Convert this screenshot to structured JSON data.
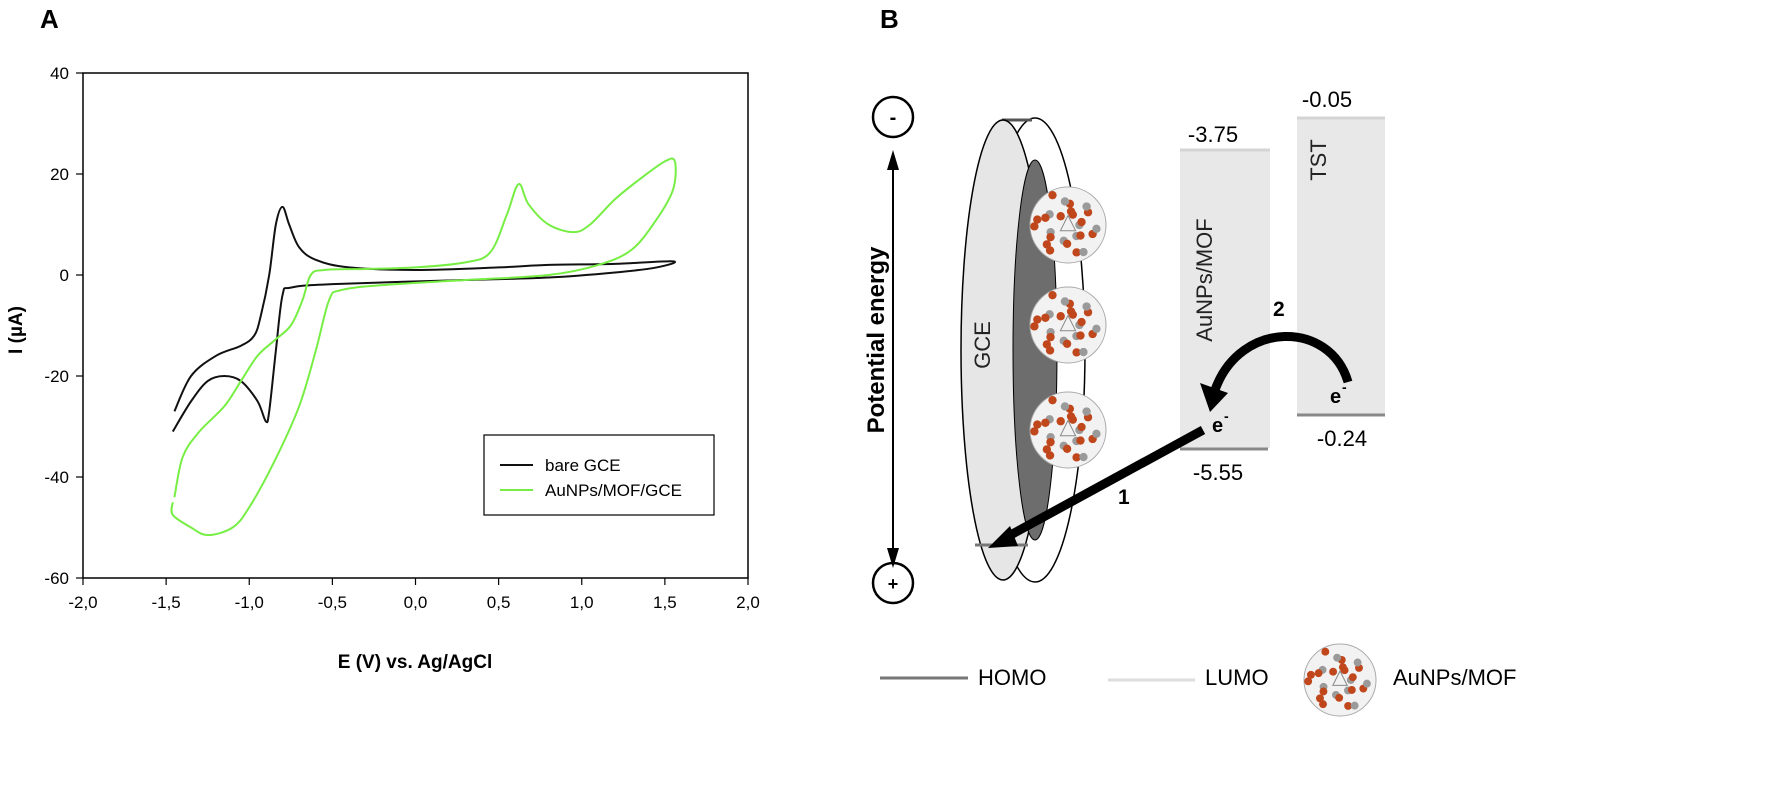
{
  "panel_labels": {
    "a": "A",
    "b": "B"
  },
  "chart_data": {
    "type": "line",
    "title": "",
    "xlabel": "E (V) vs. Ag/AgCl",
    "ylabel": "I (µA)",
    "xlim": [
      -2.0,
      2.0
    ],
    "ylim": [
      -60,
      40
    ],
    "xticks": [
      "-2,0",
      "-1,5",
      "-1,0",
      "-0,5",
      "0,0",
      "0,5",
      "1,0",
      "1,5",
      "2,0"
    ],
    "xtick_values": [
      -2,
      -1.5,
      -1,
      -0.5,
      0,
      0.5,
      1,
      1.5,
      2
    ],
    "yticks": [
      "40",
      "20",
      "0",
      "-20",
      "-40",
      "-60"
    ],
    "ytick_values": [
      40,
      20,
      0,
      -20,
      -40,
      -60
    ],
    "grid": false,
    "legend_position": "bottom-right",
    "series": [
      {
        "name": "bare GCE",
        "color": "#111111",
        "x": [
          -1.45,
          -1.35,
          -1.2,
          -1.05,
          -0.97,
          -0.93,
          -0.88,
          -0.84,
          -0.8,
          -0.76,
          -0.7,
          -0.6,
          -0.4,
          0,
          0.5,
          0.8,
          1.2,
          1.55,
          1.45,
          1.2,
          0.8,
          0.3,
          -0.5,
          -0.75,
          -0.8,
          -0.84,
          -0.88,
          -0.9,
          -0.95,
          -1.05,
          -1.15,
          -1.25,
          -1.35,
          -1.46
        ],
        "y": [
          -27,
          -20,
          -16,
          -14,
          -12,
          -8,
          0,
          10,
          13.5,
          10,
          5.5,
          3,
          1.5,
          1,
          1.5,
          2,
          2.2,
          2.7,
          1.5,
          0.5,
          -0.5,
          -1,
          -1.8,
          -2.5,
          -4,
          -15,
          -27,
          -29,
          -25,
          -21,
          -20,
          -21,
          -25,
          -31
        ]
      },
      {
        "name": "AuNPs/MOF/GCE",
        "color": "#77ee44",
        "x": [
          -1.45,
          -1.4,
          -1.3,
          -1.15,
          -1.05,
          -0.95,
          -0.85,
          -0.75,
          -0.68,
          -0.63,
          -0.55,
          -0.3,
          0,
          0.3,
          0.45,
          0.55,
          0.62,
          0.68,
          0.8,
          0.95,
          1.05,
          1.2,
          1.35,
          1.5,
          1.56,
          1.55,
          1.45,
          1.3,
          1.1,
          0.8,
          0.3,
          -0.2,
          -0.45,
          -0.52,
          -0.6,
          -0.7,
          -0.85,
          -1.0,
          -1.1,
          -1.25,
          -1.35,
          -1.46,
          -1.46
        ],
        "y": [
          -44,
          -36,
          -31,
          -26,
          -21,
          -16,
          -13,
          -10,
          -5,
          0,
          1,
          1.2,
          1.5,
          2.5,
          4.5,
          12,
          18,
          14,
          10,
          8.5,
          10,
          15,
          19,
          22.5,
          22.5,
          17,
          11,
          5,
          2,
          0,
          -1,
          -2,
          -3,
          -5,
          -15,
          -26,
          -37,
          -46,
          -50,
          -51.5,
          -50,
          -47.5,
          -45
        ]
      }
    ]
  },
  "diagram": {
    "minus_sign": "-",
    "plus_sign": "+",
    "axis_label": "Potential energy",
    "electrode_label": "GCE",
    "mof_label": "AuNPs/MOF",
    "mof_lumo": "-3.75",
    "mof_homo": "-5.55",
    "tst_label": "TST",
    "tst_lumo": "-0.05",
    "tst_homo": "-0.24",
    "electron": "e",
    "electron_charge": "-",
    "step1": "1",
    "step2": "2",
    "legend": {
      "homo": "HOMO",
      "lumo": "LUMO",
      "mof": "AuNPs/MOF"
    }
  }
}
